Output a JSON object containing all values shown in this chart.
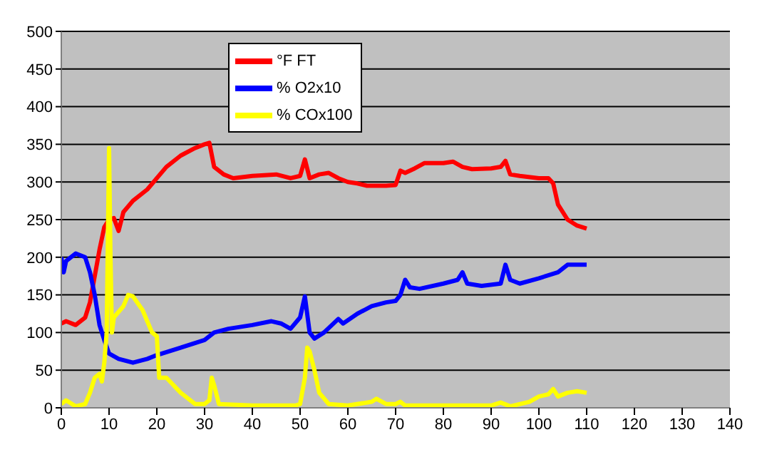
{
  "chart_data": {
    "type": "line",
    "xlim": [
      0,
      140
    ],
    "xticks": [
      0,
      10,
      20,
      30,
      40,
      50,
      60,
      70,
      80,
      90,
      100,
      110,
      120,
      130,
      140
    ],
    "ylim": [
      0,
      500
    ],
    "yticks": [
      0,
      50,
      100,
      150,
      200,
      250,
      300,
      350,
      400,
      450,
      500
    ],
    "grid": "y",
    "legend": "top left",
    "marker": "none",
    "line_style": "solid",
    "series": [
      {
        "name": "°F FT",
        "color": "#ff0000",
        "x": [
          0,
          1,
          3,
          5,
          6,
          7,
          8,
          9,
          10,
          11,
          12,
          13,
          15,
          18,
          20,
          22,
          25,
          28,
          30,
          31,
          32,
          34,
          36,
          40,
          45,
          48,
          50,
          51,
          52,
          54,
          56,
          58,
          60,
          62,
          64,
          68,
          70,
          71,
          72,
          74,
          76,
          80,
          82,
          84,
          86,
          90,
          92,
          93,
          94,
          96,
          100,
          102,
          103,
          104,
          106,
          108,
          110
        ],
        "values": [
          112,
          115,
          110,
          120,
          140,
          175,
          210,
          240,
          250,
          252,
          235,
          260,
          275,
          290,
          305,
          320,
          335,
          345,
          350,
          352,
          320,
          310,
          305,
          308,
          310,
          305,
          308,
          330,
          305,
          310,
          312,
          305,
          300,
          298,
          295,
          295,
          296,
          315,
          312,
          318,
          325,
          325,
          327,
          320,
          317,
          318,
          320,
          328,
          310,
          308,
          305,
          305,
          298,
          270,
          250,
          242,
          238
        ]
      },
      {
        "name": "% O2x10",
        "color": "#0000ff",
        "x": [
          0,
          0.5,
          1,
          3,
          5,
          6,
          7,
          8,
          9,
          10,
          12,
          15,
          18,
          20,
          25,
          30,
          32,
          35,
          40,
          44,
          46,
          48,
          50,
          51,
          52,
          53,
          55,
          58,
          59,
          62,
          65,
          68,
          70,
          71,
          72,
          73,
          75,
          80,
          83,
          84,
          85,
          88,
          92,
          93,
          94,
          96,
          100,
          104,
          106,
          110
        ],
        "values": [
          200,
          180,
          195,
          205,
          200,
          180,
          150,
          110,
          90,
          72,
          65,
          60,
          65,
          70,
          80,
          90,
          100,
          105,
          110,
          115,
          112,
          105,
          120,
          148,
          100,
          92,
          100,
          118,
          112,
          125,
          135,
          140,
          142,
          150,
          170,
          160,
          158,
          165,
          170,
          180,
          165,
          162,
          165,
          190,
          170,
          165,
          172,
          180,
          190,
          190
        ]
      },
      {
        "name": "% COx100",
        "color": "#ffff00",
        "x": [
          0,
          1,
          3,
          5,
          6,
          7,
          8,
          8.5,
          9,
          9.5,
          10,
          10.3,
          10.6,
          11,
          13,
          14,
          15,
          17,
          19,
          20,
          20.5,
          22,
          25,
          28,
          30,
          31,
          31.5,
          32,
          33,
          40,
          49,
          50,
          51,
          51.5,
          52,
          53,
          54,
          56,
          60,
          65,
          66,
          68,
          70,
          71,
          72,
          80,
          90,
          92,
          94,
          98,
          100,
          102,
          103,
          104,
          106,
          108,
          110
        ],
        "values": [
          5,
          10,
          2,
          5,
          20,
          40,
          45,
          35,
          60,
          100,
          345,
          200,
          100,
          120,
          135,
          150,
          148,
          130,
          100,
          95,
          40,
          40,
          20,
          5,
          5,
          10,
          40,
          30,
          5,
          3,
          3,
          5,
          40,
          80,
          75,
          50,
          20,
          5,
          3,
          8,
          12,
          5,
          5,
          8,
          3,
          3,
          3,
          7,
          2,
          8,
          15,
          18,
          25,
          15,
          20,
          22,
          20
        ]
      }
    ]
  }
}
